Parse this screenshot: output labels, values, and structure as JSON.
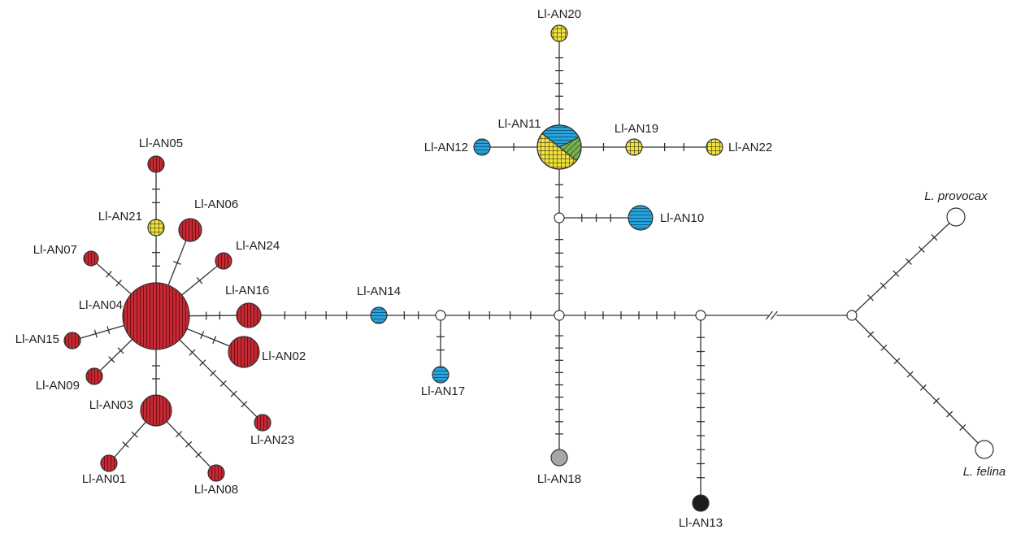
{
  "colors": {
    "red": "#c62832",
    "yellow": "#f2e33a",
    "blue": "#27a3db",
    "green": "#78b04e",
    "grey": "#a7a7a7",
    "black": "#1c1c1c",
    "white": "#ffffff",
    "line": "#333333"
  },
  "legend_patterns": {
    "red": "vertical-lines",
    "yellow": "grid",
    "blue": "horizontal-lines",
    "green": "diagonal-lines"
  },
  "haplotypes": [
    {
      "id": "n04",
      "label": "Ll-AN04",
      "fill": "red"
    },
    {
      "id": "n05",
      "label": "Ll-AN05",
      "fill": "red"
    },
    {
      "id": "n21",
      "label": "Ll-AN21",
      "fill": "yellow"
    },
    {
      "id": "n06",
      "label": "Ll-AN06",
      "fill": "red"
    },
    {
      "id": "n24",
      "label": "Ll-AN24",
      "fill": "red"
    },
    {
      "id": "n07",
      "label": "Ll-AN07",
      "fill": "red"
    },
    {
      "id": "n16",
      "label": "Ll-AN16",
      "fill": "red"
    },
    {
      "id": "n15",
      "label": "Ll-AN15",
      "fill": "red"
    },
    {
      "id": "n02",
      "label": "Ll-AN02",
      "fill": "red"
    },
    {
      "id": "n09",
      "label": "Ll-AN09",
      "fill": "red"
    },
    {
      "id": "n03",
      "label": "Ll-AN03",
      "fill": "red"
    },
    {
      "id": "n23",
      "label": "Ll-AN23",
      "fill": "red"
    },
    {
      "id": "n01",
      "label": "Ll-AN01",
      "fill": "red"
    },
    {
      "id": "n08",
      "label": "Ll-AN08",
      "fill": "red"
    },
    {
      "id": "n14",
      "label": "Ll-AN14",
      "fill": "blue"
    },
    {
      "id": "n17",
      "label": "Ll-AN17",
      "fill": "blue"
    },
    {
      "id": "n11",
      "label": "Ll-AN11",
      "fill": "pie"
    },
    {
      "id": "n12",
      "label": "Ll-AN12",
      "fill": "blue"
    },
    {
      "id": "n19",
      "label": "Ll-AN19",
      "fill": "yellow"
    },
    {
      "id": "n22",
      "label": "Ll-AN22",
      "fill": "yellow"
    },
    {
      "id": "n20",
      "label": "Ll-AN20",
      "fill": "yellow"
    },
    {
      "id": "n10",
      "label": "Ll-AN10",
      "fill": "blue"
    },
    {
      "id": "n18",
      "label": "Ll-AN18",
      "fill": "grey"
    },
    {
      "id": "n13",
      "label": "Ll-AN13",
      "fill": "black"
    },
    {
      "id": "prov",
      "label": "L. provocax",
      "fill": "white"
    },
    {
      "id": "fel",
      "label": "L. felina",
      "fill": "white"
    }
  ],
  "median_vectors": [
    "mv1",
    "mv2",
    "mv3",
    "mv4",
    "mv5"
  ],
  "pie_ll_an11": [
    {
      "fill": "blue",
      "fraction": 0.32
    },
    {
      "fill": "green",
      "fraction": 0.18
    },
    {
      "fill": "yellow",
      "fraction": 0.5
    }
  ],
  "edges": [
    {
      "from": "n04",
      "to": "n21",
      "steps": 2
    },
    {
      "from": "n21",
      "to": "n05",
      "steps": 2
    },
    {
      "from": "n04",
      "to": "n06",
      "steps": 1
    },
    {
      "from": "n04",
      "to": "n24",
      "steps": 1
    },
    {
      "from": "n04",
      "to": "n07",
      "steps": 2
    },
    {
      "from": "n04",
      "to": "n16",
      "steps": 2
    },
    {
      "from": "n04",
      "to": "n15",
      "steps": 2
    },
    {
      "from": "n04",
      "to": "n02",
      "steps": 2
    },
    {
      "from": "n04",
      "to": "n09",
      "steps": 2
    },
    {
      "from": "n04",
      "to": "n03",
      "steps": 2
    },
    {
      "from": "n04",
      "to": "n23",
      "steps": 6
    },
    {
      "from": "n03",
      "to": "n01",
      "steps": 2
    },
    {
      "from": "n03",
      "to": "n08",
      "steps": 3
    },
    {
      "from": "n16",
      "to": "n14",
      "steps": 4
    },
    {
      "from": "n14",
      "to": "mv1",
      "steps": 2
    },
    {
      "from": "mv1",
      "to": "n17",
      "steps": 2
    },
    {
      "from": "mv1",
      "to": "mv2",
      "steps": 4
    },
    {
      "from": "mv2",
      "to": "mv3",
      "steps": 5
    },
    {
      "from": "mv3",
      "to": "n11",
      "steps": 2
    },
    {
      "from": "mv3",
      "to": "n10",
      "steps": 3
    },
    {
      "from": "n11",
      "to": "n20",
      "steps": 5
    },
    {
      "from": "n11",
      "to": "n12",
      "steps": 1
    },
    {
      "from": "n11",
      "to": "n19",
      "steps": 1
    },
    {
      "from": "n19",
      "to": "n22",
      "steps": 2
    },
    {
      "from": "mv2",
      "to": "n18",
      "steps": 9
    },
    {
      "from": "mv2",
      "to": "mv4",
      "steps": 6
    },
    {
      "from": "mv4",
      "to": "n13",
      "steps": 11
    },
    {
      "from": "mv4",
      "to": "mv5",
      "steps": 0,
      "broken": true
    },
    {
      "from": "mv5",
      "to": "prov",
      "steps": 6
    },
    {
      "from": "mv5",
      "to": "fel",
      "steps": 8
    }
  ]
}
